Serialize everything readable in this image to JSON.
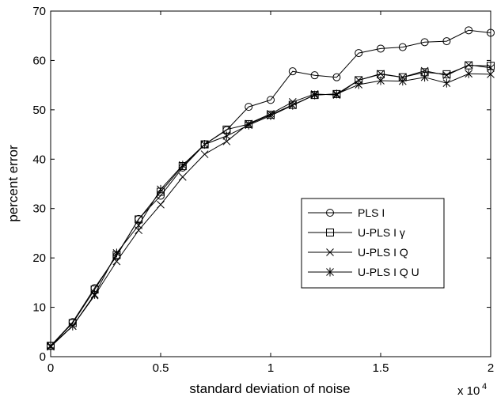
{
  "chart_data": {
    "type": "line",
    "title": "",
    "xlabel": "standard deviation of noise",
    "ylabel": "percent error",
    "x_multiplier_label": "x 10",
    "x_multiplier_exponent": "4",
    "xlim": [
      0,
      2
    ],
    "ylim": [
      0,
      70
    ],
    "xticks": [
      0,
      0.5,
      1,
      1.5,
      2
    ],
    "xtick_labels": [
      "0",
      "0.5",
      "1",
      "1.5",
      "2"
    ],
    "yticks": [
      0,
      10,
      20,
      30,
      40,
      50,
      60,
      70
    ],
    "ytick_labels": [
      "0",
      "10",
      "20",
      "30",
      "40",
      "50",
      "60",
      "70"
    ],
    "grid": false,
    "legend_position": "middle-right",
    "x": [
      0,
      0.1,
      0.2,
      0.3,
      0.4,
      0.5,
      0.6,
      0.7,
      0.8,
      0.9,
      1.0,
      1.1,
      1.2,
      1.3,
      1.4,
      1.5,
      1.6,
      1.7,
      1.8,
      1.9,
      2.0
    ],
    "series": [
      {
        "name": "PLS I",
        "marker": "circle",
        "values": [
          2.2,
          7.0,
          13.9,
          20.4,
          27.9,
          32.6,
          38.3,
          43.0,
          45.9,
          50.6,
          52.0,
          57.8,
          57.0,
          56.6,
          61.5,
          62.4,
          62.7,
          63.7,
          63.9,
          66.1,
          65.6
        ]
      },
      {
        "name": "U-PLS I γ",
        "marker": "square",
        "values": [
          2.2,
          6.8,
          13.6,
          20.6,
          27.8,
          33.4,
          38.6,
          43.0,
          46.0,
          47.1,
          49.0,
          51.0,
          53.0,
          53.2,
          56.0,
          57.2,
          56.6,
          57.6,
          57.2,
          59.0,
          58.9
        ]
      },
      {
        "name": "U-PLS I Q",
        "marker": "x",
        "values": [
          2.0,
          6.2,
          12.4,
          19.3,
          25.6,
          30.8,
          36.4,
          41.0,
          43.6,
          47.2,
          49.2,
          51.6,
          53.2,
          53.0,
          56.0,
          57.3,
          56.6,
          57.9,
          57.0,
          59.1,
          58.5
        ]
      },
      {
        "name": "U-PLS I Q U",
        "marker": "asterisk",
        "values": [
          2.2,
          6.2,
          12.6,
          21.0,
          26.6,
          33.9,
          38.8,
          43.0,
          44.7,
          46.9,
          48.8,
          50.9,
          53.0,
          53.2,
          55.1,
          55.9,
          55.8,
          56.6,
          55.4,
          57.3,
          57.2
        ]
      }
    ]
  }
}
